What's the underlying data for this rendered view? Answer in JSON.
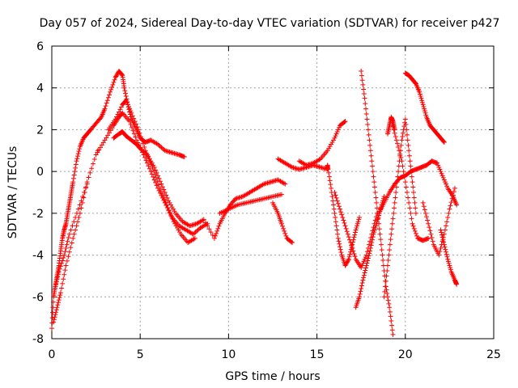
{
  "chart_data": {
    "type": "scatter",
    "title": "Day 057 of 2024, Sidereal Day-to-day VTEC variation (SDTVAR) for receiver p427",
    "xlabel": "GPS time / hours",
    "ylabel": "SDTVAR / TECUs",
    "xlim": [
      0,
      25
    ],
    "ylim": [
      -8,
      6
    ],
    "xticks": [
      "0",
      "5",
      "10",
      "15",
      "20",
      "25"
    ],
    "yticks": [
      "-8",
      "-6",
      "-4",
      "-2",
      "0",
      "2",
      "4",
      "6"
    ],
    "grid": true,
    "marker": "+",
    "marker_color": "#ff0000",
    "series": [
      {
        "name": "SDTVAR",
        "x": [
          0.0,
          0.1,
          0.2,
          0.3,
          0.4,
          0.5,
          0.6,
          0.7,
          0.8,
          0.9,
          1.0,
          1.1,
          1.2,
          1.4,
          1.6,
          1.8,
          2.0,
          2.2,
          2.5,
          2.8,
          3.0,
          3.3,
          3.6,
          3.8,
          4.0,
          4.1,
          4.3,
          4.5,
          4.8,
          5.0,
          5.3,
          5.6,
          6.0,
          6.4,
          6.8,
          7.2,
          7.5,
          0.1,
          0.3,
          0.5,
          0.8,
          1.2,
          1.6,
          2.0,
          2.5,
          3.0,
          3.5,
          3.8,
          4.0,
          4.4,
          4.8,
          5.2,
          5.6,
          6.0,
          6.4,
          6.8,
          7.2,
          7.6,
          8.0,
          8.4,
          8.8,
          0.2,
          0.4,
          0.7,
          1.0,
          1.5,
          2.0,
          2.6,
          3.2,
          3.6,
          4.0,
          4.2,
          4.5,
          4.9,
          5.3,
          5.7,
          6.1,
          6.5,
          6.9,
          7.3,
          7.7,
          8.1,
          3.5,
          3.8,
          4.0,
          4.2,
          4.5,
          4.8,
          5.0,
          5.4,
          5.8,
          6.2,
          6.6,
          7.0,
          7.4,
          7.8,
          8.2,
          8.6,
          9.2,
          9.5,
          9.8,
          10.1,
          10.4,
          10.8,
          11.2,
          11.6,
          12.0,
          12.4,
          12.8,
          13.2,
          9.5,
          10.0,
          10.5,
          11.0,
          11.5,
          12.0,
          12.5,
          13.0,
          12.5,
          12.8,
          13.0,
          13.3,
          13.6,
          14.0,
          14.4,
          14.8,
          15.2,
          15.6,
          16.0,
          16.3,
          16.6,
          12.8,
          13.2,
          13.6,
          14.0,
          14.4,
          14.8,
          15.2,
          15.6,
          15.6,
          15.8,
          16.0,
          16.2,
          16.4,
          16.6,
          16.8,
          17.0,
          17.2,
          17.4,
          16.0,
          16.3,
          16.6,
          16.9,
          17.2,
          17.5,
          17.8,
          18.1,
          18.4,
          17.2,
          17.4,
          17.6,
          17.8,
          18.0,
          18.2,
          18.4,
          18.6,
          18.8,
          17.5,
          17.7,
          17.9,
          18.1,
          18.3,
          18.5,
          18.7,
          18.9,
          19.1,
          19.3,
          18.8,
          19.0,
          19.2,
          19.4,
          19.6,
          19.8,
          20.0,
          20.2,
          20.4,
          20.6,
          18.5,
          18.8,
          19.1,
          19.4,
          19.7,
          20.0,
          20.3,
          20.6,
          20.9,
          21.2,
          21.5,
          21.8,
          22.1,
          22.4,
          22.7,
          22.9,
          20.0,
          20.2,
          20.4,
          20.6,
          20.8,
          21.0,
          21.2,
          21.4,
          21.6,
          21.8,
          22.0,
          22.2,
          19.2,
          19.5,
          19.8,
          20.1,
          20.4,
          20.7,
          21.0,
          21.3,
          21.0,
          21.3,
          21.6,
          21.9,
          22.2,
          22.5,
          22.8,
          22.0,
          22.2,
          22.4,
          22.6,
          22.8,
          22.9,
          19.0,
          19.1,
          19.2,
          19.3,
          19.4
        ],
        "y": [
          -7.5,
          -6.0,
          -5.5,
          -5.0,
          -4.5,
          -3.8,
          -3.2,
          -2.8,
          -2.5,
          -2.0,
          -1.5,
          -1.0,
          -0.5,
          0.5,
          1.2,
          1.6,
          1.8,
          2.0,
          2.3,
          2.6,
          3.0,
          3.8,
          4.5,
          4.8,
          4.6,
          4.0,
          3.2,
          2.5,
          2.0,
          1.6,
          1.4,
          1.5,
          1.3,
          1.0,
          0.9,
          0.8,
          0.7,
          -7.2,
          -6.5,
          -5.8,
          -4.5,
          -3.2,
          -2.0,
          -0.5,
          0.8,
          1.5,
          2.2,
          2.6,
          2.8,
          2.4,
          1.5,
          0.8,
          0.0,
          -0.8,
          -1.5,
          -2.2,
          -2.6,
          -2.8,
          -3.0,
          -2.7,
          -2.5,
          -5.5,
          -4.8,
          -4.0,
          -3.0,
          -1.8,
          -0.6,
          1.0,
          2.0,
          2.5,
          3.2,
          3.4,
          2.8,
          2.0,
          1.0,
          0.2,
          -0.8,
          -1.6,
          -2.4,
          -3.0,
          -3.4,
          -3.2,
          1.6,
          1.8,
          1.9,
          1.7,
          1.5,
          1.3,
          1.1,
          0.8,
          0.2,
          -0.6,
          -1.4,
          -2.0,
          -2.4,
          -2.6,
          -2.5,
          -2.3,
          -3.2,
          -2.5,
          -2.0,
          -1.6,
          -1.3,
          -1.2,
          -1.0,
          -0.8,
          -0.6,
          -0.5,
          -0.4,
          -0.6,
          -2.0,
          -1.8,
          -1.6,
          -1.5,
          -1.4,
          -1.3,
          -1.2,
          -1.1,
          -1.5,
          -2.0,
          -2.5,
          -3.2,
          -3.4,
          0.5,
          0.3,
          0.4,
          0.6,
          1.0,
          1.6,
          2.2,
          2.4,
          0.6,
          0.4,
          0.2,
          0.1,
          0.2,
          0.3,
          0.2,
          0.1,
          0.3,
          -0.8,
          -2.0,
          -3.2,
          -4.0,
          -4.5,
          -4.2,
          -3.5,
          -2.8,
          -2.2,
          -1.0,
          -1.8,
          -2.6,
          -3.4,
          -4.2,
          -4.6,
          -4.0,
          -3.0,
          -2.0,
          -6.5,
          -6.0,
          -5.2,
          -4.5,
          -3.8,
          -3.0,
          -2.4,
          -1.8,
          -1.2,
          4.8,
          3.5,
          2.0,
          0.5,
          -1.0,
          -2.5,
          -4.0,
          -5.5,
          -6.5,
          -7.8,
          -6.0,
          -4.5,
          -3.0,
          -1.5,
          0.0,
          1.5,
          2.5,
          1.0,
          -0.5,
          -2.0,
          -2.0,
          -1.5,
          -1.0,
          -0.6,
          -0.3,
          -0.2,
          0.0,
          0.1,
          0.2,
          0.3,
          0.5,
          0.4,
          -0.2,
          -0.8,
          -1.2,
          -1.6,
          4.7,
          4.6,
          4.4,
          4.2,
          3.8,
          3.2,
          2.6,
          2.2,
          2.0,
          1.8,
          1.6,
          1.4,
          2.5,
          1.5,
          0.5,
          -1.0,
          -2.5,
          -3.2,
          -3.3,
          -3.2,
          -1.5,
          -2.5,
          -3.5,
          -4.0,
          -3.0,
          -1.8,
          -0.8,
          -2.8,
          -3.5,
          -4.2,
          -4.8,
          -5.2,
          -5.4,
          1.8,
          2.2,
          2.6,
          2.4,
          2.0
        ]
      }
    ]
  }
}
